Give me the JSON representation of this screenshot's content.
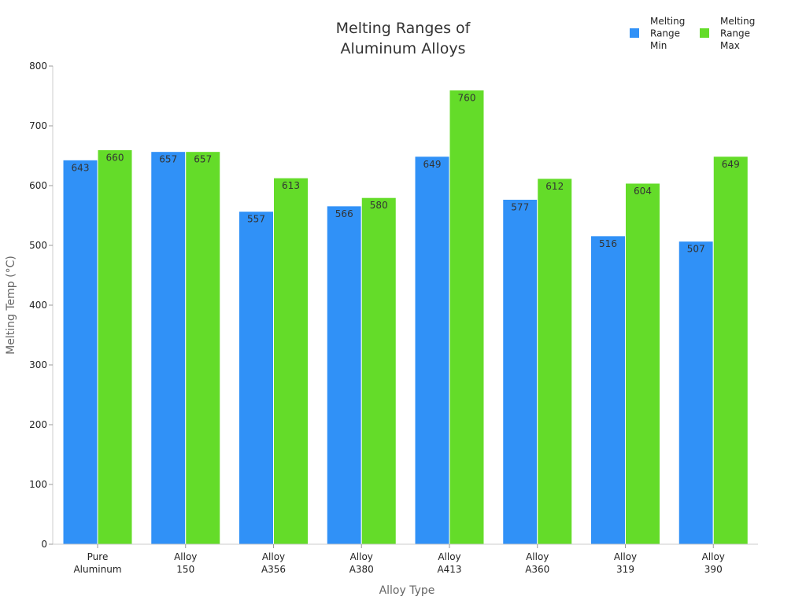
{
  "chart_data": {
    "type": "bar",
    "title": [
      "Melting Ranges of",
      "Aluminum Alloys"
    ],
    "xlabel": "Alloy Type",
    "ylabel": "Melting Temp (°C)",
    "ylim": [
      0,
      800
    ],
    "yticks": [
      0,
      100,
      200,
      300,
      400,
      500,
      600,
      700,
      800
    ],
    "categories": [
      [
        "Pure",
        "Aluminum"
      ],
      [
        "Alloy",
        "150"
      ],
      [
        "Alloy",
        "A356"
      ],
      [
        "Alloy",
        "A380"
      ],
      [
        "Alloy",
        "A413"
      ],
      [
        "Alloy",
        "A360"
      ],
      [
        "Alloy",
        "319"
      ],
      [
        "Alloy",
        "390"
      ]
    ],
    "series": [
      {
        "name": [
          "Melting",
          "Range",
          "Min"
        ],
        "color": "#3091f7",
        "values": [
          643,
          657,
          557,
          566,
          649,
          577,
          516,
          507
        ]
      },
      {
        "name": [
          "Melting",
          "Range",
          "Max"
        ],
        "color": "#64dc29",
        "values": [
          660,
          657,
          613,
          580,
          760,
          612,
          604,
          649
        ]
      }
    ],
    "legend_position": "top-right",
    "grid": false
  }
}
